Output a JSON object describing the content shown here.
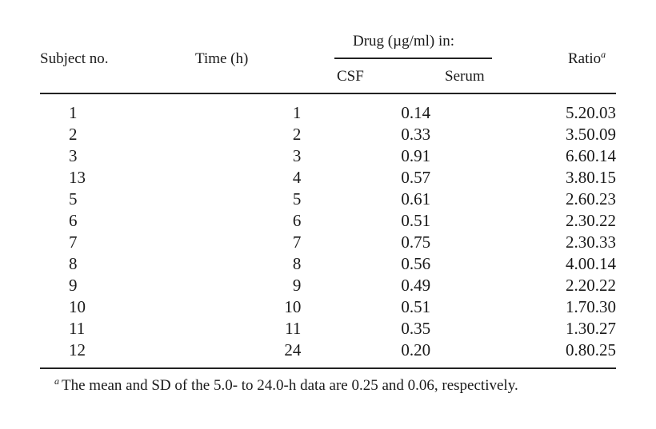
{
  "table": {
    "headers": {
      "subject": "Subject no.",
      "time": "Time (h)",
      "drug_group": "Drug (µg/ml) in:",
      "csf": "CSF",
      "serum": "Serum",
      "ratio": "Ratio",
      "ratio_mark": "a"
    },
    "rows": [
      {
        "subject": "1",
        "time": "1",
        "csf": "0.14",
        "serum": "5.2",
        "ratio": "0.03"
      },
      {
        "subject": "2",
        "time": "2",
        "csf": "0.33",
        "serum": "3.5",
        "ratio": "0.09"
      },
      {
        "subject": "3",
        "time": "3",
        "csf": "0.91",
        "serum": "6.6",
        "ratio": "0.14"
      },
      {
        "subject": "13",
        "time": "4",
        "csf": "0.57",
        "serum": "3.8",
        "ratio": "0.15"
      },
      {
        "subject": "5",
        "time": "5",
        "csf": "0.61",
        "serum": "2.6",
        "ratio": "0.23"
      },
      {
        "subject": "6",
        "time": "6",
        "csf": "0.51",
        "serum": "2.3",
        "ratio": "0.22"
      },
      {
        "subject": "7",
        "time": "7",
        "csf": "0.75",
        "serum": "2.3",
        "ratio": "0.33"
      },
      {
        "subject": "8",
        "time": "8",
        "csf": "0.56",
        "serum": "4.0",
        "ratio": "0.14"
      },
      {
        "subject": "9",
        "time": "9",
        "csf": "0.49",
        "serum": "2.2",
        "ratio": "0.22"
      },
      {
        "subject": "10",
        "time": "10",
        "csf": "0.51",
        "serum": "1.7",
        "ratio": "0.30"
      },
      {
        "subject": "11",
        "time": "11",
        "csf": "0.35",
        "serum": "1.3",
        "ratio": "0.27"
      },
      {
        "subject": "12",
        "time": "24",
        "csf": "0.20",
        "serum": "0.8",
        "ratio": "0.25"
      }
    ],
    "footnote": {
      "mark": "a",
      "text": "The mean and SD of the 5.0- to 24.0-h data are 0.25 and 0.06, respectively."
    }
  }
}
